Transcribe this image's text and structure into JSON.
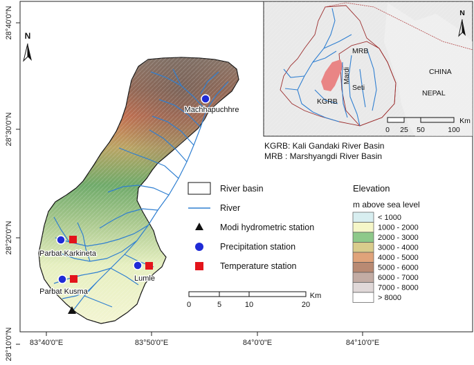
{
  "axes": {
    "x_ticks": [
      "83°40'0\"E",
      "83°50'0\"E",
      "84°0'0\"E",
      "84°10'0\"E"
    ],
    "y_ticks": [
      "28°40'0\"N",
      "28°30'0\"N",
      "28°20'0\"N",
      "28°10'0\"N"
    ]
  },
  "north_arrow": {
    "label": "N"
  },
  "stations": {
    "machhapuchhre": "Machhapuchhre",
    "parbat_karkineta": "Parbat Karkineta",
    "lumle": "Lumle",
    "parbat_kusma": "Parbat Kusma"
  },
  "legend": {
    "river_basin": "River basin",
    "river": "River",
    "modi_station": "Modi hydrometric station",
    "precip_station": "Precipitation station",
    "temp_station": "Temperature station"
  },
  "elevation": {
    "title": "Elevation",
    "subtitle": "m above sea level",
    "classes": [
      {
        "label": "< 1000",
        "color": "#d8eef0"
      },
      {
        "label": "1000 - 2000",
        "color": "#f5f6c8"
      },
      {
        "label": "2000 - 3000",
        "color": "#8ec98a"
      },
      {
        "label": "3000 - 4000",
        "color": "#d9cc8c"
      },
      {
        "label": "4000 - 5000",
        "color": "#e0a37a"
      },
      {
        "label": "5000 - 6000",
        "color": "#b98a73"
      },
      {
        "label": "6000 - 7000",
        "color": "#c3aca4"
      },
      {
        "label": "7000 - 8000",
        "color": "#e0d8d8"
      },
      {
        "label": "> 8000",
        "color": "#ffffff"
      }
    ]
  },
  "scale_main": {
    "ticks": [
      "0",
      "5",
      "10",
      "20"
    ],
    "unit": "Km"
  },
  "inset": {
    "labels": {
      "mrb": "MRB",
      "mardi": "Mardi",
      "seti": "Seti",
      "kgrb": "KGRB",
      "china": "CHINA",
      "nepal": "NEPAL",
      "north": "N"
    },
    "scale": {
      "ticks": [
        "0",
        "25",
        "50",
        "100"
      ],
      "unit": "Km"
    }
  },
  "abbreviations": {
    "kgrb": "KGRB: Kali Gandaki River Basin",
    "mrb": "MRB  : Marshyangdi River Basin"
  },
  "colors": {
    "river": "#2f7fd1",
    "precip": "#1f2bd6",
    "temp": "#e3141b",
    "inset_highlight": "#e98585"
  }
}
